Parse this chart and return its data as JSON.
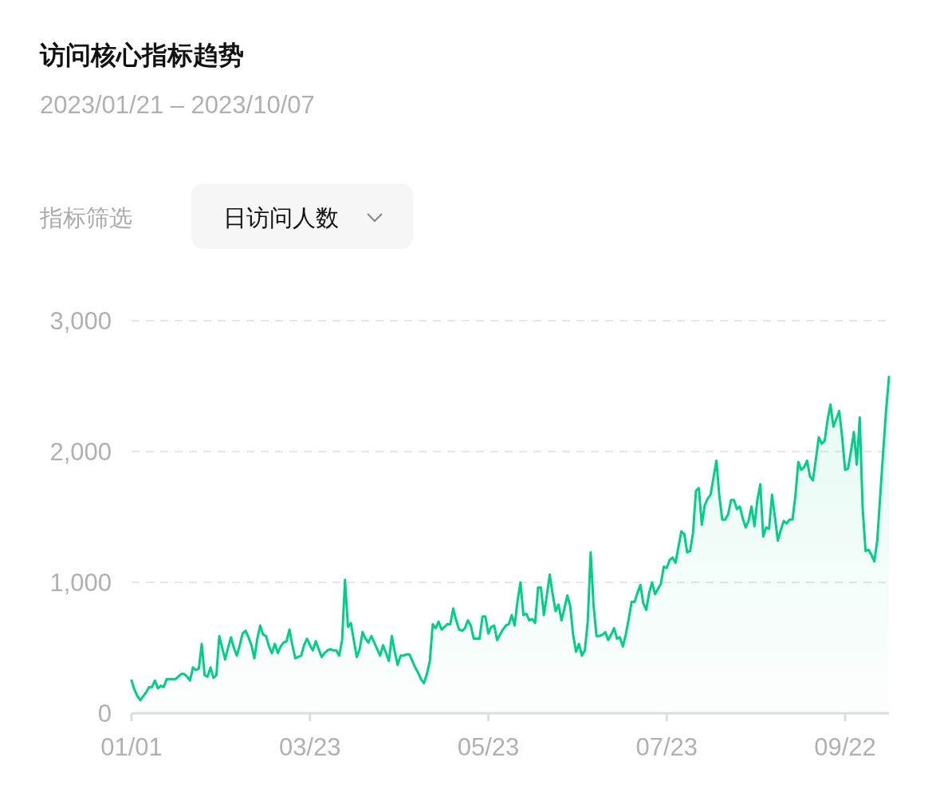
{
  "chart_data": {
    "type": "area",
    "title": "访问核心指标趋势",
    "subtitle": "2023/01/21 – 2023/10/07",
    "annotations": [
      "指标筛选",
      "日访问人数"
    ],
    "color": "#00cf88",
    "grid": "y",
    "categories": [
      "01/01",
      null,
      null,
      null,
      null,
      null,
      null,
      null,
      null,
      null,
      null,
      null,
      null,
      null,
      null,
      null,
      null,
      null,
      null,
      null,
      null,
      null,
      null,
      null,
      null,
      null,
      null,
      null,
      null,
      null,
      null,
      null,
      null,
      null,
      null,
      null,
      null,
      null,
      null,
      null,
      null,
      null,
      null,
      null,
      null,
      null,
      null,
      null,
      null,
      null,
      null,
      null,
      null,
      null,
      null,
      null,
      null,
      null,
      null,
      null,
      null,
      "03/23",
      null,
      null,
      null,
      null,
      null,
      null,
      null,
      null,
      null,
      null,
      null,
      null,
      null,
      null,
      null,
      null,
      null,
      null,
      null,
      null,
      null,
      null,
      null,
      null,
      null,
      null,
      null,
      null,
      null,
      null,
      null,
      null,
      null,
      null,
      null,
      null,
      null,
      null,
      null,
      null,
      null,
      null,
      null,
      null,
      null,
      null,
      null,
      null,
      null,
      null,
      null,
      null,
      null,
      null,
      null,
      null,
      null,
      null,
      null,
      null,
      "05/23",
      null,
      null,
      null,
      null,
      null,
      null,
      null,
      null,
      null,
      null,
      null,
      null,
      null,
      null,
      null,
      null,
      null,
      null,
      null,
      null,
      null,
      null,
      null,
      null,
      null,
      null,
      null,
      null,
      null,
      null,
      null,
      null,
      null,
      null,
      null,
      null,
      null,
      null,
      null,
      null,
      null,
      null,
      null,
      null,
      null,
      null,
      null,
      null,
      null,
      null,
      null,
      null,
      null,
      null,
      null,
      null,
      null,
      null,
      null,
      null,
      "07/23",
      null,
      null,
      null,
      null,
      null,
      null,
      null,
      null,
      null,
      null,
      null,
      null,
      null,
      null,
      null,
      null,
      null,
      null,
      null,
      null,
      null,
      null,
      null,
      null,
      null,
      null,
      null,
      null,
      null,
      null,
      null,
      null,
      null,
      null,
      null,
      null,
      null,
      null,
      null,
      null,
      null,
      null,
      null,
      null,
      null,
      null,
      null,
      null,
      null,
      null,
      null,
      null,
      null,
      null,
      null,
      null,
      null,
      null,
      null,
      null,
      "09/22",
      null,
      null,
      null,
      null,
      null,
      null,
      null,
      null,
      null,
      null,
      null,
      null,
      null,
      null,
      null
    ],
    "ylim": [
      0,
      3000
    ],
    "yticks": [
      0,
      {
        "value": 1000,
        "label": "1,000"
      },
      {
        "value": 2000,
        "label": "2,000"
      },
      {
        "value": 3000,
        "label": "3,000"
      }
    ],
    "values": [
      250,
      180,
      130,
      100,
      130,
      160,
      200,
      200,
      250,
      190,
      210,
      200,
      260,
      260,
      260,
      260,
      280,
      300,
      300,
      280,
      250,
      350,
      330,
      340,
      530,
      290,
      280,
      350,
      270,
      290,
      590,
      500,
      410,
      500,
      580,
      500,
      440,
      520,
      610,
      630,
      580,
      520,
      420,
      570,
      670,
      600,
      590,
      510,
      460,
      530,
      460,
      510,
      540,
      550,
      640,
      520,
      420,
      430,
      440,
      520,
      570,
      520,
      480,
      550,
      490,
      430,
      460,
      480,
      490,
      480,
      480,
      440,
      560,
      1020,
      660,
      690,
      560,
      430,
      490,
      620,
      570,
      540,
      590,
      540,
      490,
      440,
      520,
      460,
      400,
      590,
      470,
      370,
      440,
      440,
      450,
      450,
      400,
      350,
      310,
      260,
      230,
      300,
      400,
      680,
      650,
      700,
      640,
      660,
      680,
      680,
      800,
      710,
      640,
      630,
      650,
      710,
      670,
      570,
      570,
      570,
      740,
      740,
      610,
      660,
      670,
      560,
      600,
      640,
      670,
      680,
      750,
      670,
      860,
      1000,
      750,
      760,
      710,
      720,
      690,
      960,
      960,
      750,
      900,
      1060,
      910,
      780,
      830,
      710,
      800,
      900,
      820,
      600,
      470,
      530,
      440,
      480,
      700,
      1230,
      820,
      590,
      590,
      600,
      620,
      560,
      600,
      650,
      570,
      580,
      510,
      600,
      720,
      850,
      850,
      920,
      980,
      840,
      790,
      920,
      1000,
      910,
      950,
      990,
      1120,
      1110,
      1170,
      1190,
      1150,
      1270,
      1390,
      1370,
      1230,
      1240,
      1380,
      1700,
      1720,
      1440,
      1590,
      1640,
      1670,
      1800,
      1930,
      1660,
      1480,
      1480,
      1520,
      1630,
      1630,
      1560,
      1580,
      1490,
      1420,
      1470,
      1580,
      1430,
      1630,
      1750,
      1350,
      1420,
      1410,
      1670,
      1500,
      1320,
      1400,
      1470,
      1450,
      1480,
      1480,
      1660,
      1920,
      1860,
      1880,
      1930,
      1810,
      1780,
      1940,
      2110,
      2060,
      2080,
      2240,
      2360,
      2190,
      2250,
      2310,
      2110,
      1860,
      1870,
      2000,
      2150,
      1900,
      2260,
      1570,
      1240,
      1250,
      1210,
      1160,
      1320,
      1660,
      1990,
      2310,
      2570
    ]
  }
}
